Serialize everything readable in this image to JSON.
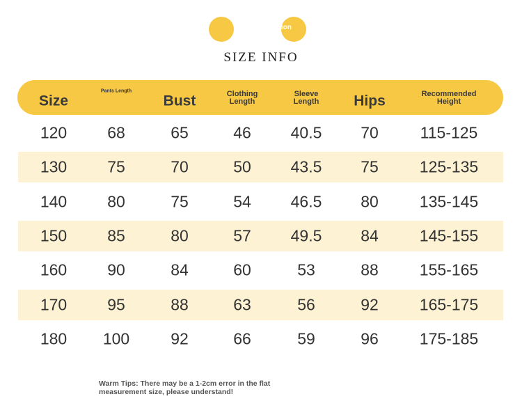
{
  "header": {
    "badge": "Size Information",
    "title": "SIZE INFO"
  },
  "table": {
    "columns": [
      "Size",
      "Pants Length",
      "Bust",
      "Clothing Length",
      "Sleeve Length",
      "Hips",
      "Recommended Height"
    ],
    "rows": [
      [
        "120",
        "68",
        "65",
        "46",
        "40.5",
        "70",
        "115-125"
      ],
      [
        "130",
        "75",
        "70",
        "50",
        "43.5",
        "75",
        "125-135"
      ],
      [
        "140",
        "80",
        "75",
        "54",
        "46.5",
        "80",
        "135-145"
      ],
      [
        "150",
        "85",
        "80",
        "57",
        "49.5",
        "84",
        "145-155"
      ],
      [
        "160",
        "90",
        "84",
        "60",
        "53",
        "88",
        "155-165"
      ],
      [
        "170",
        "95",
        "88",
        "63",
        "56",
        "92",
        "165-175"
      ],
      [
        "180",
        "100",
        "92",
        "66",
        "59",
        "96",
        "175-185"
      ]
    ]
  },
  "footer": {
    "tips": "Warm Tips: There may be a 1-2cm error in the flat measurement size, please understand!"
  }
}
